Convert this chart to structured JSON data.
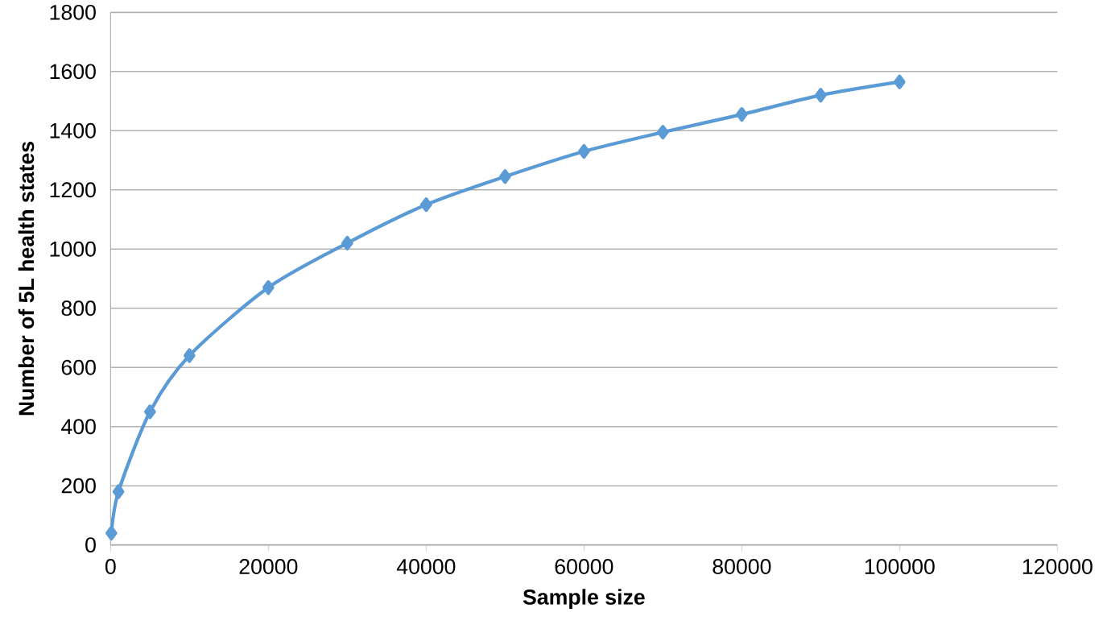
{
  "chart_data": {
    "type": "line",
    "xlabel": "Sample size",
    "ylabel": "Number of 5L health states",
    "x": [
      100,
      1000,
      5000,
      10000,
      20000,
      30000,
      40000,
      50000,
      60000,
      70000,
      80000,
      90000,
      100000
    ],
    "series": [
      {
        "color": "#5b9bd5",
        "values": [
          40,
          180,
          450,
          640,
          870,
          1020,
          1150,
          1245,
          1330,
          1395,
          1455,
          1520,
          1565
        ]
      }
    ],
    "xlim": [
      0,
      120000
    ],
    "xticks": [
      0,
      20000,
      40000,
      60000,
      80000,
      100000,
      120000
    ],
    "ylim": [
      0,
      1800
    ],
    "yticks": [
      0,
      200,
      400,
      600,
      800,
      1000,
      1200,
      1400,
      1600,
      1800
    ],
    "grid": "y",
    "marker": "diamond",
    "line_style": "solid"
  }
}
